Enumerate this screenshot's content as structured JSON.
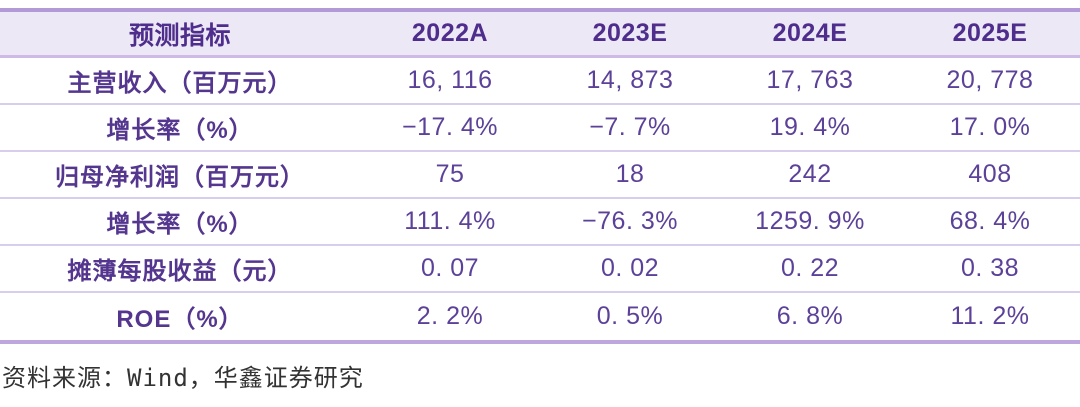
{
  "table": {
    "header": {
      "indicator_label": "预测指标",
      "years": [
        "2022A",
        "2023E",
        "2024E",
        "2025E"
      ]
    },
    "rows": [
      {
        "label": "主营收入（百万元）",
        "values": [
          "16, 116",
          "14, 873",
          "17, 763",
          "20, 778"
        ]
      },
      {
        "label": "增长率（%）",
        "values": [
          "−17. 4%",
          "−7. 7%",
          "19. 4%",
          "17. 0%"
        ]
      },
      {
        "label": "归母净利润（百万元）",
        "values": [
          "75",
          "18",
          "242",
          "408"
        ]
      },
      {
        "label": "增长率（%）",
        "values": [
          "111. 4%",
          "−76. 3%",
          "1259. 9%",
          "68. 4%"
        ]
      },
      {
        "label": "摊薄每股收益（元）",
        "values": [
          "0. 07",
          "0. 02",
          "0. 22",
          "0. 38"
        ]
      },
      {
        "label": "ROE（%）",
        "values": [
          "2. 2%",
          "0. 5%",
          "6. 8%",
          "11. 2%"
        ]
      }
    ]
  },
  "footer": {
    "source_text": "资料来源：Wind，华鑫证券研究"
  },
  "colors": {
    "header_bg": "#ece8f5",
    "header_text": "#4e2d8c",
    "label_text": "#54368f",
    "value_text": "#5c4199",
    "border_strong": "#b29ad8",
    "border_light": "#d9cdee",
    "source_text": "#333333"
  },
  "chart_data": {
    "type": "table",
    "title": "预测指标",
    "categories": [
      "2022A",
      "2023E",
      "2024E",
      "2025E"
    ],
    "series": [
      {
        "name": "主营收入（百万元）",
        "values": [
          16116,
          14873,
          17763,
          20778
        ]
      },
      {
        "name": "增长率（%）",
        "values": [
          -17.4,
          -7.7,
          19.4,
          17.0
        ]
      },
      {
        "name": "归母净利润（百万元）",
        "values": [
          75,
          18,
          242,
          408
        ]
      },
      {
        "name": "增长率（%）",
        "values": [
          111.4,
          -76.3,
          1259.9,
          68.4
        ]
      },
      {
        "name": "摊薄每股收益（元）",
        "values": [
          0.07,
          0.02,
          0.22,
          0.38
        ]
      },
      {
        "name": "ROE（%）",
        "values": [
          2.2,
          0.5,
          6.8,
          11.2
        ]
      }
    ],
    "source": "资料来源：Wind，华鑫证券研究"
  }
}
